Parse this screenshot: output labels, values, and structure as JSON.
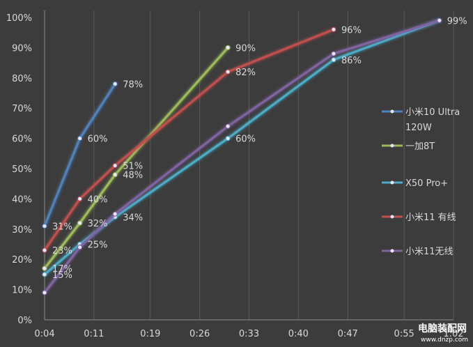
{
  "chart_data": {
    "type": "line",
    "x_ticks": [
      "0:04",
      "0:11",
      "0:19",
      "0:26",
      "0:33",
      "0:40",
      "0:47",
      "0:55",
      "1:02"
    ],
    "y_ticks": [
      "0%",
      "10%",
      "20%",
      "30%",
      "40%",
      "50%",
      "60%",
      "70%",
      "80%",
      "90%",
      "100%"
    ],
    "xlim": [
      "0:04",
      "1:02"
    ],
    "ylim": [
      0,
      100
    ],
    "grid": "vertical",
    "legend_position": "right",
    "series": [
      {
        "name": "小米10 Ultra 120W",
        "name_lines": [
          "小米10 Ultra",
          "120W"
        ],
        "color": "#4f81bd",
        "points": [
          {
            "x": "0:04",
            "y": 31,
            "label": "31%"
          },
          {
            "x": "0:09",
            "y": 60,
            "label": "60%"
          },
          {
            "x": "0:14",
            "y": 78,
            "label": "78%"
          }
        ]
      },
      {
        "name": "一加8T",
        "name_lines": [
          "一加8T"
        ],
        "color": "#9bbb59",
        "points": [
          {
            "x": "0:04",
            "y": 17,
            "label": "17%"
          },
          {
            "x": "0:09",
            "y": 32,
            "label": "32%"
          },
          {
            "x": "0:14",
            "y": 48,
            "label": "48%"
          },
          {
            "x": "0:30",
            "y": 90,
            "label": "90%"
          }
        ]
      },
      {
        "name": "X50 Pro+",
        "name_lines": [
          "X50 Pro+"
        ],
        "color": "#4bacc6",
        "points": [
          {
            "x": "0:04",
            "y": 15,
            "label": "15%"
          },
          {
            "x": "0:09",
            "y": 25,
            "label": "25%"
          },
          {
            "x": "0:14",
            "y": 34,
            "label": "34%"
          },
          {
            "x": "0:30",
            "y": 60,
            "label": "60%"
          },
          {
            "x": "0:45",
            "y": 86,
            "label": "86%"
          },
          {
            "x": "1:00",
            "y": 99,
            "label": "99%"
          }
        ]
      },
      {
        "name": "小米11 有线",
        "name_lines": [
          "小米11 有线"
        ],
        "color": "#c0504d",
        "points": [
          {
            "x": "0:04",
            "y": 23,
            "label": "23%"
          },
          {
            "x": "0:09",
            "y": 40,
            "label": "40%"
          },
          {
            "x": "0:14",
            "y": 51,
            "label": "51%"
          },
          {
            "x": "0:30",
            "y": 82,
            "label": "82%"
          },
          {
            "x": "0:45",
            "y": 96,
            "label": "96%"
          }
        ]
      },
      {
        "name": "小米11无线",
        "name_lines": [
          "小米11无线"
        ],
        "color": "#8064a2",
        "points": [
          {
            "x": "0:04",
            "y": 9,
            "label": ""
          },
          {
            "x": "0:09",
            "y": 24,
            "label": ""
          },
          {
            "x": "0:14",
            "y": 35,
            "label": ""
          },
          {
            "x": "0:30",
            "y": 64,
            "label": ""
          },
          {
            "x": "0:45",
            "y": 88,
            "label": ""
          },
          {
            "x": "1:00",
            "y": 99,
            "label": ""
          }
        ]
      }
    ]
  },
  "watermark": {
    "main": "电脑装配网",
    "sub": "www.dnzp.com"
  }
}
